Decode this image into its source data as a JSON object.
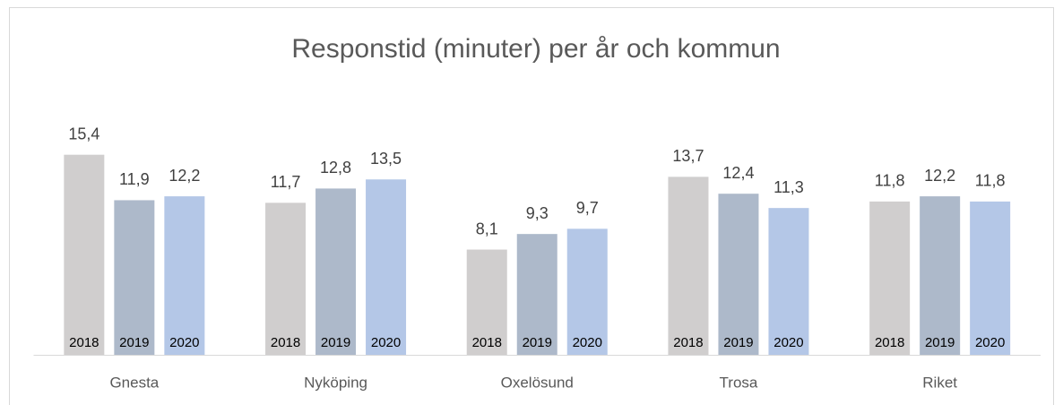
{
  "chart_data": {
    "type": "bar",
    "title": "Responstid (minuter) per år och kommun",
    "categories": [
      "Gnesta",
      "Nyköping",
      "Oxelösund",
      "Trosa",
      "Riket"
    ],
    "series": [
      {
        "name": "2018",
        "color": "#d0cece",
        "values": [
          15.4,
          11.7,
          8.1,
          13.7,
          11.8
        ],
        "value_labels": [
          "15,4",
          "11,7",
          "8,1",
          "13,7",
          "11,8"
        ]
      },
      {
        "name": "2019",
        "color": "#adb9ca",
        "values": [
          11.9,
          12.8,
          9.3,
          12.4,
          12.2
        ],
        "value_labels": [
          "11,9",
          "12,8",
          "9,3",
          "12,4",
          "12,2"
        ]
      },
      {
        "name": "2020",
        "color": "#b4c7e7",
        "values": [
          12.2,
          13.5,
          9.7,
          11.3,
          11.8
        ],
        "value_labels": [
          "12,2",
          "13,5",
          "9,7",
          "11,3",
          "11,8"
        ]
      }
    ],
    "ylim": [
      0,
      20
    ]
  }
}
